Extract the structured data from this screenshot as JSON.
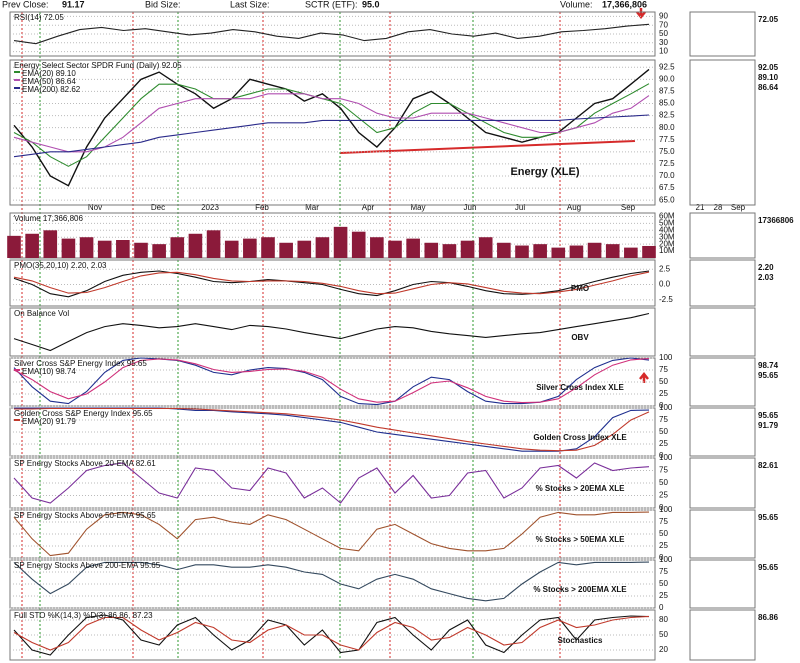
{
  "header": {
    "prev_close_label": "Prev Close:",
    "prev_close": "91.17",
    "bid_size_label": "Bid Size:",
    "last_size_label": "Last Size:",
    "sctr_label": "SCTR (ETF):",
    "sctr": "95.0",
    "volume_label": "Volume:",
    "volume": "17,366,806"
  },
  "months": [
    "Nov",
    "Dec",
    "2023",
    "Feb",
    "Mar",
    "Apr",
    "May",
    "Jun",
    "Jul",
    "Aug",
    "Sep"
  ],
  "mini_months": [
    "21",
    "28",
    "Sep"
  ],
  "chart_data": [
    {
      "type": "line",
      "title": "RSI(14) 72.05",
      "ylim": [
        0,
        100
      ],
      "yticks": [
        90,
        70,
        50,
        30,
        10
      ],
      "series": [
        {
          "color": "#222222",
          "values": [
            35,
            28,
            45,
            60,
            65,
            58,
            62,
            55,
            48,
            52,
            60,
            55,
            45,
            40,
            52,
            48,
            35,
            40,
            55,
            60,
            50,
            45,
            52,
            40,
            45,
            55,
            58,
            62,
            68,
            72.05
          ]
        }
      ],
      "mini_labels": [
        "72.05"
      ]
    },
    {
      "type": "line",
      "title": "Energy Select Sector SPDR Fund (Daily) 92.05",
      "annotation": "Energy (XLE)",
      "ylim": [
        64,
        94
      ],
      "yticks": [
        92.5,
        {
          "value": 90,
          "label": "90.0"
        },
        87.5,
        {
          "value": 85,
          "label": "85.0"
        },
        82.5,
        {
          "value": 80,
          "label": "80.0"
        },
        77.5,
        {
          "value": 75,
          "label": "75.0"
        },
        72.5,
        {
          "value": 70,
          "label": "70.0"
        },
        67.5,
        {
          "value": 65,
          "label": "65.0"
        }
      ],
      "series": [
        {
          "color": "#111111",
          "values": [
            80.5,
            76,
            70,
            68,
            76,
            82,
            86,
            90,
            91.5,
            89,
            87,
            84,
            86,
            90,
            89,
            88,
            85.5,
            87,
            84,
            79,
            76,
            80,
            86,
            87.5,
            85,
            82,
            79,
            78,
            77,
            78,
            79,
            82,
            85,
            86,
            89,
            92.05
          ]
        },
        {
          "name": "EMA(20) 89.10",
          "color": "#2e8b2e",
          "values": [
            79,
            77,
            74,
            72,
            74,
            78,
            82,
            86,
            89,
            89,
            88,
            86,
            86,
            87,
            88,
            88,
            87,
            86,
            85,
            82,
            79,
            80,
            83,
            85,
            85,
            83,
            81,
            79,
            78,
            78,
            79,
            80,
            83,
            85,
            87,
            89.1
          ]
        },
        {
          "name": "EMA(50) 86.64",
          "color": "#b04fb0",
          "values": [
            78,
            77,
            76,
            75,
            75,
            76,
            78,
            81,
            84,
            85,
            86,
            86,
            86,
            86,
            87,
            87,
            87,
            86,
            86,
            85,
            83,
            82,
            82,
            83,
            83,
            83,
            82,
            81,
            80,
            79,
            79,
            80,
            81,
            83,
            84,
            86.64
          ]
        },
        {
          "name": "EMA(200) 82.62",
          "color": "#2a2a8a",
          "values": [
            74,
            74.5,
            75,
            75,
            75.5,
            76,
            76.5,
            77,
            78,
            78.5,
            79,
            79.5,
            80,
            80.5,
            81,
            81,
            81,
            81.5,
            81.5,
            81.5,
            81.5,
            81.5,
            81.5,
            81.5,
            81.5,
            81.5,
            81.5,
            81.5,
            81.5,
            81.5,
            81.5,
            81.8,
            82,
            82.2,
            82.4,
            82.62
          ]
        }
      ],
      "mini_labels": [
        "92.05",
        "89.10",
        "86.64"
      ]
    },
    {
      "type": "bar",
      "title": "Volume 17,366,806",
      "ylim": [
        0,
        65000000
      ],
      "yticks": [
        {
          "value": 60000000,
          "label": "60M"
        },
        {
          "value": 50000000,
          "label": "50M"
        },
        {
          "value": 40000000,
          "label": "40M"
        },
        {
          "value": 30000000,
          "label": "30M"
        },
        {
          "value": 20000000,
          "label": "20M"
        },
        {
          "value": 10000000,
          "label": "10M"
        }
      ],
      "series": [
        {
          "color": "#8b1a3a",
          "values": [
            32000000,
            35000000,
            40000000,
            28000000,
            30000000,
            25000000,
            26000000,
            22000000,
            20000000,
            30000000,
            35000000,
            40000000,
            25000000,
            28000000,
            30000000,
            22000000,
            25000000,
            30000000,
            45000000,
            38000000,
            30000000,
            25000000,
            28000000,
            22000000,
            20000000,
            25000000,
            30000000,
            22000000,
            18000000,
            20000000,
            15000000,
            18000000,
            22000000,
            20000000,
            15000000,
            17366806
          ]
        }
      ],
      "mini_labels": [
        "17366806"
      ]
    },
    {
      "type": "line",
      "title": "PMO(35,20,10) 2.20, 2.03",
      "annotation": "PMO",
      "ylim": [
        -3.5,
        4
      ],
      "yticks": [
        2.5,
        {
          "value": 0,
          "label": "0.0"
        },
        -2.5
      ],
      "series": [
        {
          "color": "#111111",
          "values": [
            1.0,
            0,
            -1.5,
            -2,
            -1,
            0.5,
            1.5,
            2,
            2.2,
            1.8,
            1.2,
            0.5,
            0.3,
            0.5,
            0.8,
            0.6,
            0.3,
            0,
            -0.8,
            -1.5,
            -1.8,
            -1,
            0,
            0.5,
            0.3,
            -0.3,
            -1,
            -1.5,
            -1.6,
            -1.4,
            -1,
            -0.3,
            0.5,
            1.2,
            1.8,
            2.2
          ]
        },
        {
          "color": "#c0392b",
          "values": [
            1.2,
            0.6,
            -0.5,
            -1.4,
            -1.3,
            -0.5,
            0.5,
            1.4,
            1.9,
            2,
            1.6,
            1,
            0.6,
            0.5,
            0.6,
            0.6,
            0.5,
            0.2,
            -0.3,
            -1,
            -1.5,
            -1.4,
            -0.7,
            0,
            0.3,
            0.1,
            -0.5,
            -1.1,
            -1.4,
            -1.5,
            -1.2,
            -0.8,
            -0.1,
            0.6,
            1.4,
            2.03
          ]
        }
      ],
      "mini_labels": [
        "2.20",
        "2.03"
      ]
    },
    {
      "type": "line",
      "title": "On Balance Vol",
      "annotation": "OBV",
      "series": [
        {
          "color": "#111111",
          "values": [
            50,
            40,
            30,
            45,
            60,
            70,
            75,
            72,
            68,
            70,
            75,
            70,
            65,
            72,
            70,
            66,
            60,
            55,
            50,
            58,
            66,
            70,
            68,
            62,
            58,
            55,
            52,
            55,
            58,
            60,
            65,
            70,
            75,
            80,
            85,
            92
          ]
        }
      ],
      "mini_labels": []
    },
    {
      "type": "line",
      "title": "Silver Cross S&P Energy Index 95.65",
      "annotation": "Silver Cross Index XLE",
      "ylim": [
        0,
        100
      ],
      "yticks": [
        100,
        75,
        50,
        25,
        0
      ],
      "series": [
        {
          "color": "#1f2f8f",
          "values": [
            80,
            40,
            10,
            5,
            30,
            70,
            95,
            100,
            98,
            95,
            85,
            70,
            65,
            75,
            80,
            78,
            70,
            55,
            20,
            5,
            3,
            10,
            40,
            60,
            55,
            30,
            10,
            5,
            5,
            8,
            20,
            55,
            80,
            95,
            100,
            95.65
          ]
        },
        {
          "name": "EMA(10) 98.74",
          "color": "#d0307a",
          "values": [
            75,
            55,
            30,
            15,
            25,
            50,
            80,
            95,
            98,
            96,
            88,
            76,
            70,
            72,
            76,
            77,
            72,
            60,
            35,
            15,
            8,
            10,
            28,
            48,
            52,
            38,
            20,
            10,
            7,
            8,
            15,
            38,
            65,
            85,
            96,
            98.74
          ]
        }
      ],
      "mini_labels": [
        "98.74",
        "95.65"
      ]
    },
    {
      "type": "line",
      "title": "Golden Cross S&P Energy Index 95.65",
      "annotation": "Golden Cross Index XLE",
      "ylim": [
        0,
        100
      ],
      "yticks": [
        100,
        75,
        50,
        25,
        0
      ],
      "series": [
        {
          "color": "#1f2f8f",
          "values": [
            100,
            100,
            100,
            100,
            100,
            100,
            100,
            100,
            100,
            98,
            95,
            95,
            92,
            90,
            88,
            85,
            80,
            75,
            70,
            60,
            50,
            45,
            40,
            35,
            30,
            25,
            20,
            15,
            10,
            10,
            10,
            15,
            40,
            80,
            95,
            95.65
          ]
        },
        {
          "name": "EMA(20) 91.79",
          "color": "#c0392b",
          "values": [
            98,
            98,
            99,
            99,
            99,
            99,
            99,
            99,
            99,
            99,
            98,
            96,
            94,
            92,
            90,
            88,
            84,
            80,
            75,
            68,
            60,
            54,
            48,
            42,
            36,
            30,
            25,
            20,
            15,
            12,
            11,
            12,
            22,
            45,
            75,
            91.79
          ]
        }
      ],
      "mini_labels": [
        "95.65",
        "91.79"
      ]
    },
    {
      "type": "line",
      "title": "SP Energy Stocks Above 20-EMA 82.61",
      "annotation": "% Stocks > 20EMA XLE",
      "ylim": [
        0,
        100
      ],
      "yticks": [
        100,
        75,
        50,
        25,
        0
      ],
      "series": [
        {
          "color": "#7a2f9a",
          "values": [
            60,
            20,
            10,
            40,
            75,
            85,
            90,
            60,
            30,
            20,
            80,
            75,
            40,
            35,
            80,
            70,
            20,
            40,
            10,
            60,
            80,
            30,
            65,
            20,
            25,
            70,
            75,
            20,
            40,
            80,
            85,
            60,
            90,
            75,
            80,
            82.61
          ]
        }
      ],
      "mini_labels": [
        "82.61"
      ]
    },
    {
      "type": "line",
      "title": "SP Energy Stocks Above 50-EMA 95.65",
      "annotation": "% Stocks > 50EMA XLE",
      "ylim": [
        0,
        100
      ],
      "yticks": [
        100,
        75,
        50,
        25,
        0
      ],
      "series": [
        {
          "color": "#a0522d",
          "values": [
            85,
            40,
            5,
            10,
            60,
            90,
            95,
            90,
            70,
            40,
            80,
            85,
            75,
            70,
            90,
            80,
            60,
            40,
            20,
            15,
            60,
            70,
            50,
            30,
            20,
            15,
            15,
            20,
            50,
            85,
            95,
            90,
            90,
            95,
            95,
            95.65
          ]
        }
      ],
      "mini_labels": [
        "95.65"
      ]
    },
    {
      "type": "line",
      "title": "SP Energy Stocks Above 200-EMA 95.65",
      "annotation": "% Stocks > 200EMA XLE",
      "ylim": [
        0,
        100
      ],
      "yticks": [
        100,
        75,
        50,
        25,
        0
      ],
      "series": [
        {
          "color": "#34495e",
          "values": [
            95,
            60,
            30,
            50,
            85,
            95,
            95,
            95,
            90,
            80,
            90,
            90,
            85,
            85,
            90,
            85,
            75,
            70,
            50,
            40,
            60,
            70,
            60,
            40,
            30,
            20,
            15,
            20,
            50,
            75,
            95,
            90,
            95,
            95,
            95,
            95.65
          ]
        }
      ],
      "mini_labels": [
        "95.65"
      ]
    },
    {
      "type": "line",
      "title": "Full STO %K(14,3) %D(3) 86.86, 87.23",
      "annotation": "Stochastics",
      "ylim": [
        0,
        100
      ],
      "yticks": [
        80,
        50,
        20
      ],
      "series": [
        {
          "color": "#111111",
          "values": [
            60,
            20,
            10,
            50,
            85,
            90,
            80,
            40,
            30,
            70,
            85,
            50,
            20,
            40,
            80,
            70,
            30,
            60,
            15,
            20,
            75,
            85,
            50,
            20,
            60,
            80,
            30,
            15,
            50,
            80,
            85,
            40,
            80,
            85,
            88,
            86.86
          ]
        },
        {
          "color": "#c0392b",
          "values": [
            55,
            35,
            20,
            35,
            70,
            85,
            85,
            60,
            40,
            55,
            75,
            65,
            40,
            35,
            60,
            70,
            50,
            50,
            30,
            20,
            55,
            75,
            65,
            40,
            45,
            65,
            50,
            30,
            35,
            65,
            80,
            65,
            70,
            80,
            85,
            87.23
          ]
        }
      ],
      "mini_labels": [
        "86.86"
      ]
    }
  ]
}
